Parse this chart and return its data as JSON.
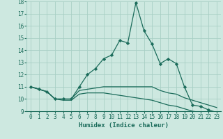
{
  "xlabel": "Humidex (Indice chaleur)",
  "xlim": [
    -0.5,
    23.5
  ],
  "ylim": [
    9,
    18
  ],
  "yticks": [
    9,
    10,
    11,
    12,
    13,
    14,
    15,
    16,
    17,
    18
  ],
  "xticks": [
    0,
    1,
    2,
    3,
    4,
    5,
    6,
    7,
    8,
    9,
    10,
    11,
    12,
    13,
    14,
    15,
    16,
    17,
    18,
    19,
    20,
    21,
    22,
    23
  ],
  "bg_color": "#cde8e0",
  "grid_color": "#a8cfc5",
  "line_color": "#1a6b5a",
  "line1_x": [
    0,
    1,
    2,
    3,
    4,
    5,
    6,
    7,
    8,
    9,
    10,
    11,
    12,
    13,
    14,
    15,
    16,
    17,
    18,
    19,
    20,
    21,
    22,
    23
  ],
  "line1_y": [
    11.0,
    10.8,
    10.6,
    10.0,
    10.0,
    10.0,
    11.0,
    12.0,
    12.5,
    13.3,
    13.6,
    14.8,
    14.6,
    17.9,
    15.6,
    14.5,
    12.9,
    13.3,
    12.9,
    11.0,
    9.5,
    9.4,
    9.1,
    8.9
  ],
  "line2_x": [
    0,
    1,
    2,
    3,
    4,
    5,
    6,
    7,
    8,
    9,
    10,
    11,
    12,
    13,
    14,
    15,
    16,
    17,
    18,
    19,
    20,
    21,
    22,
    23
  ],
  "line2_y": [
    11.0,
    10.8,
    10.6,
    10.0,
    10.0,
    10.0,
    10.7,
    10.8,
    10.9,
    11.0,
    11.0,
    11.0,
    11.0,
    11.0,
    11.0,
    11.0,
    10.7,
    10.5,
    10.4,
    10.1,
    9.9,
    9.7,
    9.5,
    9.3
  ],
  "line3_x": [
    0,
    1,
    2,
    3,
    4,
    5,
    6,
    7,
    8,
    9,
    10,
    11,
    12,
    13,
    14,
    15,
    16,
    17,
    18,
    19,
    20,
    21,
    22,
    23
  ],
  "line3_y": [
    11.0,
    10.8,
    10.6,
    10.0,
    9.9,
    9.9,
    10.4,
    10.5,
    10.5,
    10.5,
    10.4,
    10.3,
    10.2,
    10.1,
    10.0,
    9.9,
    9.7,
    9.5,
    9.4,
    9.2,
    9.0,
    8.9,
    8.8,
    8.8
  ]
}
